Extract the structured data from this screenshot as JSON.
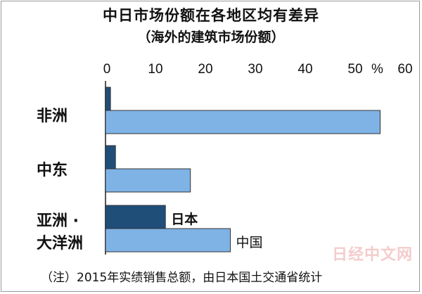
{
  "chart_data": {
    "type": "bar",
    "orientation": "horizontal",
    "title": "中日市场份额在各地区均有差异",
    "subtitle": "（海外的建筑市场份额）",
    "categories": [
      "非洲",
      "中东",
      "亚洲·大洋洲"
    ],
    "category_lines": [
      [
        "非洲"
      ],
      [
        "中东"
      ],
      [
        "亚洲 ·",
        "大洋洲"
      ]
    ],
    "series": [
      {
        "name": "日本",
        "values": [
          1,
          2,
          12
        ],
        "color": "#1f4e79"
      },
      {
        "name": "中国",
        "values": [
          55,
          17,
          25
        ],
        "color": "#7fb3e6"
      }
    ],
    "xlim": [
      0,
      60
    ],
    "xticks": [
      "0",
      "10",
      "20",
      "30",
      "40",
      "50",
      "60"
    ],
    "unit": "%",
    "grid": false,
    "legend": "inline labels on bars"
  },
  "note": "（注）2015年实绩销售总额，由日本国土交通省统计",
  "watermark": "日经中文网"
}
